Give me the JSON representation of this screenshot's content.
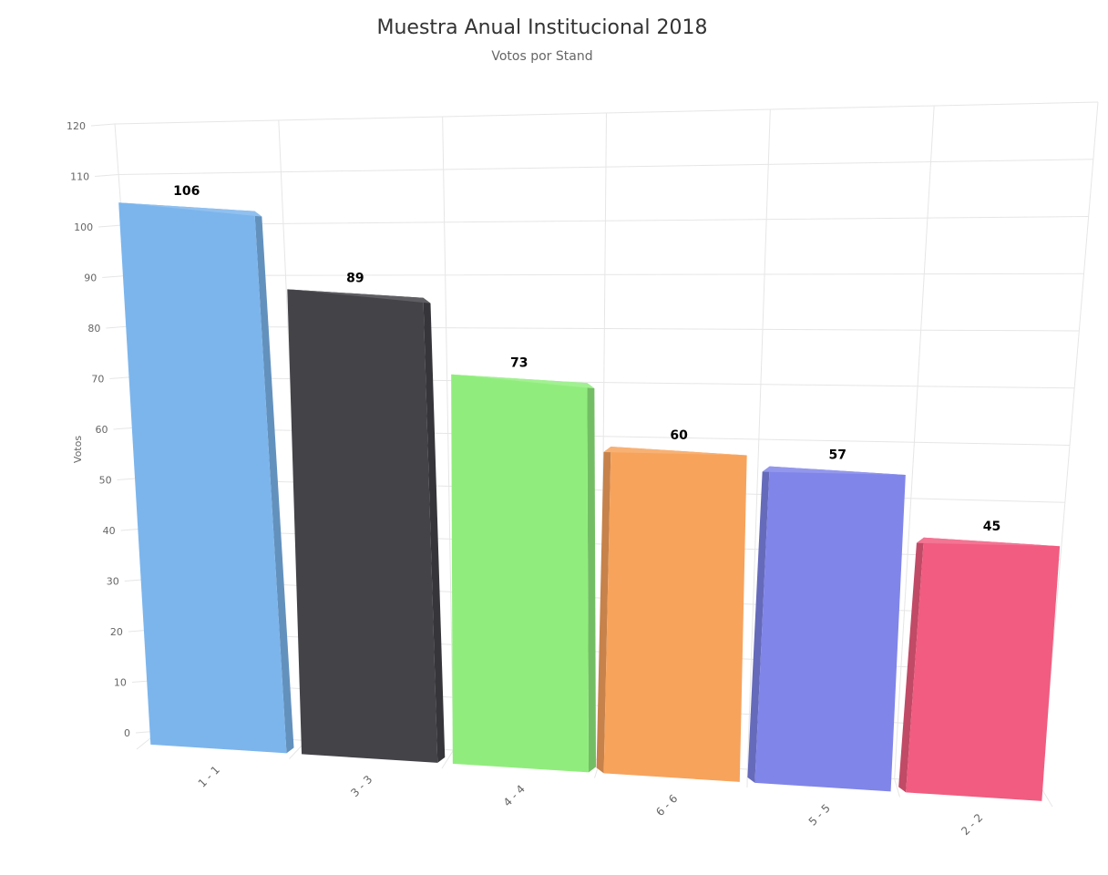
{
  "chart_data": {
    "type": "bar",
    "title": "Muestra Anual Institucional 2018",
    "subtitle": "Votos por Stand",
    "xlabel": "",
    "ylabel": "Votos",
    "ylim": [
      0,
      120
    ],
    "yticks": [
      0,
      10,
      20,
      30,
      40,
      50,
      60,
      70,
      80,
      90,
      100,
      110,
      120
    ],
    "grid": true,
    "style": "3d",
    "categories": [
      "1 - 1",
      "3 - 3",
      "4 - 4",
      "6 - 6",
      "5 - 5",
      "2 - 2"
    ],
    "values": [
      106,
      89,
      73,
      60,
      57,
      45
    ],
    "colors": [
      "#7cb5ec",
      "#434348",
      "#90ed7d",
      "#f7a35c",
      "#8085e9",
      "#f15c80"
    ]
  }
}
